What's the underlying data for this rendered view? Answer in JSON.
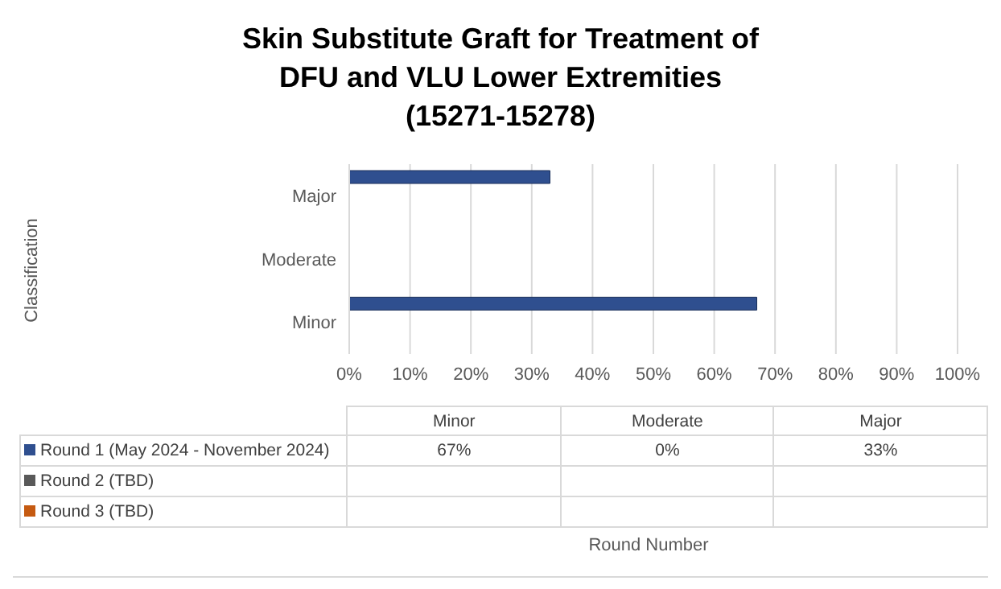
{
  "chart_data": {
    "type": "bar",
    "orientation": "horizontal",
    "title": "Skin Substitute Graft for Treatment of\nDFU and VLU Lower Extremities\n(15271-15278)",
    "annotations": [
      "Classification",
      "Round Number",
      "67%",
      "0%",
      "33%"
    ],
    "categories": [
      "Major",
      "Moderate",
      "Minor"
    ],
    "series": [
      {
        "name": "Round 1 (May 2024 - November 2024)",
        "color": "#2f4f8f",
        "values": [
          33,
          0,
          67
        ]
      },
      {
        "name": "Round 2 (TBD)",
        "color": "#595959",
        "values": [
          null,
          null,
          null
        ]
      },
      {
        "name": "Round 3 (TBD)",
        "color": "#c55a11",
        "values": [
          null,
          null,
          null
        ]
      }
    ],
    "xlim": [
      0,
      100
    ],
    "xticks": [
      {
        "value": 0,
        "label": "0%"
      },
      {
        "value": 10,
        "label": "10%"
      },
      {
        "value": 20,
        "label": "20%"
      },
      {
        "value": 30,
        "label": "30%"
      },
      {
        "value": 40,
        "label": "40%"
      },
      {
        "value": 50,
        "label": "50%"
      },
      {
        "value": 60,
        "label": "60%"
      },
      {
        "value": 70,
        "label": "70%"
      },
      {
        "value": 80,
        "label": "80%"
      },
      {
        "value": 90,
        "label": "90%"
      },
      {
        "value": 100,
        "label": "100%"
      }
    ],
    "grid": "x",
    "legend": "bottom"
  }
}
